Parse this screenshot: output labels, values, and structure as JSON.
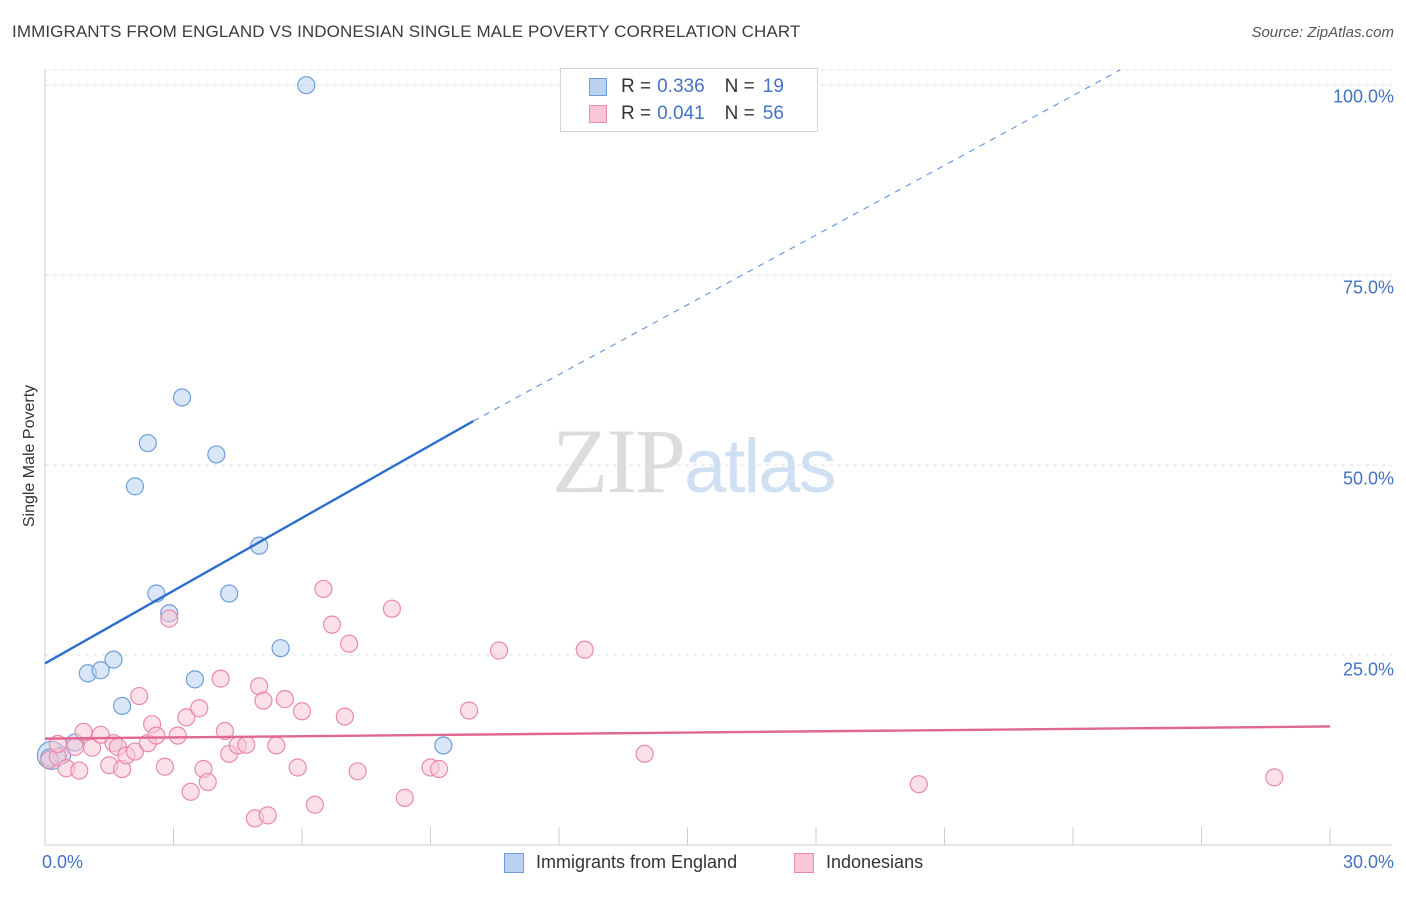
{
  "header": {
    "title": "IMMIGRANTS FROM ENGLAND VS INDONESIAN SINGLE MALE POVERTY CORRELATION CHART",
    "source": "Source: ZipAtlas.com"
  },
  "watermark": {
    "zip": "ZIP",
    "atlas": "atlas"
  },
  "legend": {
    "rows": [
      {
        "r_label": "R =",
        "r_value": "0.336",
        "n_label": "N =",
        "n_value": "19"
      },
      {
        "r_label": "R =",
        "r_value": "0.041",
        "n_label": "N =",
        "n_value": "56"
      }
    ]
  },
  "bottom_legend": [
    "Immigrants from England",
    "Indonesians"
  ],
  "colors": {
    "england_fill": "#b9d2f1",
    "england_stroke": "#6f9ed9",
    "england_line": "#2d6fcf",
    "indonesian_fill": "#f8c6d5",
    "indonesian_stroke": "#e98aa9",
    "indonesian_line": "#e06693",
    "grid": "#e0e0e0",
    "tick_text": "#4472c4"
  },
  "chart_data": {
    "type": "scatter",
    "title": "IMMIGRANTS FROM ENGLAND VS INDONESIAN SINGLE MALE POVERTY CORRELATION CHART",
    "xlabel": "",
    "ylabel": "Single Male Poverty",
    "xlim": [
      0,
      30
    ],
    "ylim": [
      0,
      102
    ],
    "x_tick_labels": [
      "0.0%",
      "30.0%"
    ],
    "y_ticks": [
      25,
      50,
      75,
      100
    ],
    "y_tick_labels": [
      "25.0%",
      "50.0%",
      "75.0%",
      "100.0%"
    ],
    "grid": true,
    "series": [
      {
        "name": "Immigrants from England",
        "r": 0.336,
        "n": 19,
        "points": [
          [
            0.1,
            11.5
          ],
          [
            0.4,
            11.8
          ],
          [
            0.7,
            13.5
          ],
          [
            1.0,
            22.6
          ],
          [
            1.3,
            23.0
          ],
          [
            1.6,
            24.4
          ],
          [
            1.8,
            18.3
          ],
          [
            2.1,
            47.2
          ],
          [
            2.4,
            52.9
          ],
          [
            2.6,
            33.1
          ],
          [
            2.9,
            30.5
          ],
          [
            3.2,
            58.9
          ],
          [
            3.5,
            21.8
          ],
          [
            4.0,
            51.4
          ],
          [
            4.3,
            33.1
          ],
          [
            5.0,
            39.4
          ],
          [
            5.5,
            25.9
          ],
          [
            6.1,
            100.0
          ],
          [
            9.3,
            13.1
          ]
        ],
        "trend": {
          "x": [
            0,
            10.0
          ],
          "y": [
            23.9,
            55.8
          ]
        },
        "trend_dashed": {
          "x": [
            10.0,
            25.1
          ],
          "y": [
            55.8,
            102.0
          ]
        }
      },
      {
        "name": "Indonesians",
        "r": 0.041,
        "n": 56,
        "points": [
          [
            0.1,
            11.2
          ],
          [
            0.3,
            11.6
          ],
          [
            0.5,
            10.1
          ],
          [
            0.7,
            12.9
          ],
          [
            0.8,
            9.8
          ],
          [
            0.9,
            14.9
          ],
          [
            1.1,
            12.8
          ],
          [
            1.3,
            14.5
          ],
          [
            1.5,
            10.5
          ],
          [
            1.6,
            13.4
          ],
          [
            1.7,
            12.9
          ],
          [
            1.8,
            10.0
          ],
          [
            1.9,
            11.8
          ],
          [
            2.1,
            12.3
          ],
          [
            2.2,
            19.6
          ],
          [
            2.4,
            13.4
          ],
          [
            2.5,
            15.9
          ],
          [
            2.6,
            14.4
          ],
          [
            2.8,
            10.3
          ],
          [
            2.9,
            29.8
          ],
          [
            3.1,
            14.4
          ],
          [
            3.3,
            16.8
          ],
          [
            3.4,
            7.0
          ],
          [
            3.6,
            18.0
          ],
          [
            3.7,
            10.0
          ],
          [
            3.8,
            8.3
          ],
          [
            4.1,
            21.9
          ],
          [
            4.2,
            15.0
          ],
          [
            4.3,
            12.0
          ],
          [
            4.5,
            13.1
          ],
          [
            4.7,
            13.2
          ],
          [
            4.9,
            3.5
          ],
          [
            5.0,
            20.9
          ],
          [
            5.1,
            19.0
          ],
          [
            5.2,
            3.9
          ],
          [
            5.4,
            13.1
          ],
          [
            5.6,
            19.2
          ],
          [
            5.9,
            10.2
          ],
          [
            6.0,
            17.6
          ],
          [
            6.3,
            5.3
          ],
          [
            6.5,
            33.7
          ],
          [
            6.7,
            29.0
          ],
          [
            7.0,
            16.9
          ],
          [
            7.1,
            26.5
          ],
          [
            7.3,
            9.7
          ],
          [
            8.1,
            31.1
          ],
          [
            8.4,
            6.2
          ],
          [
            9.0,
            10.2
          ],
          [
            9.2,
            10.0
          ],
          [
            9.9,
            17.7
          ],
          [
            10.6,
            25.6
          ],
          [
            12.6,
            25.7
          ],
          [
            14.0,
            12.0
          ],
          [
            20.4,
            8.0
          ],
          [
            28.7,
            8.9
          ],
          [
            0.3,
            13.3
          ]
        ],
        "trend": {
          "x": [
            0,
            30
          ],
          "y": [
            14.0,
            15.6
          ]
        }
      }
    ]
  }
}
